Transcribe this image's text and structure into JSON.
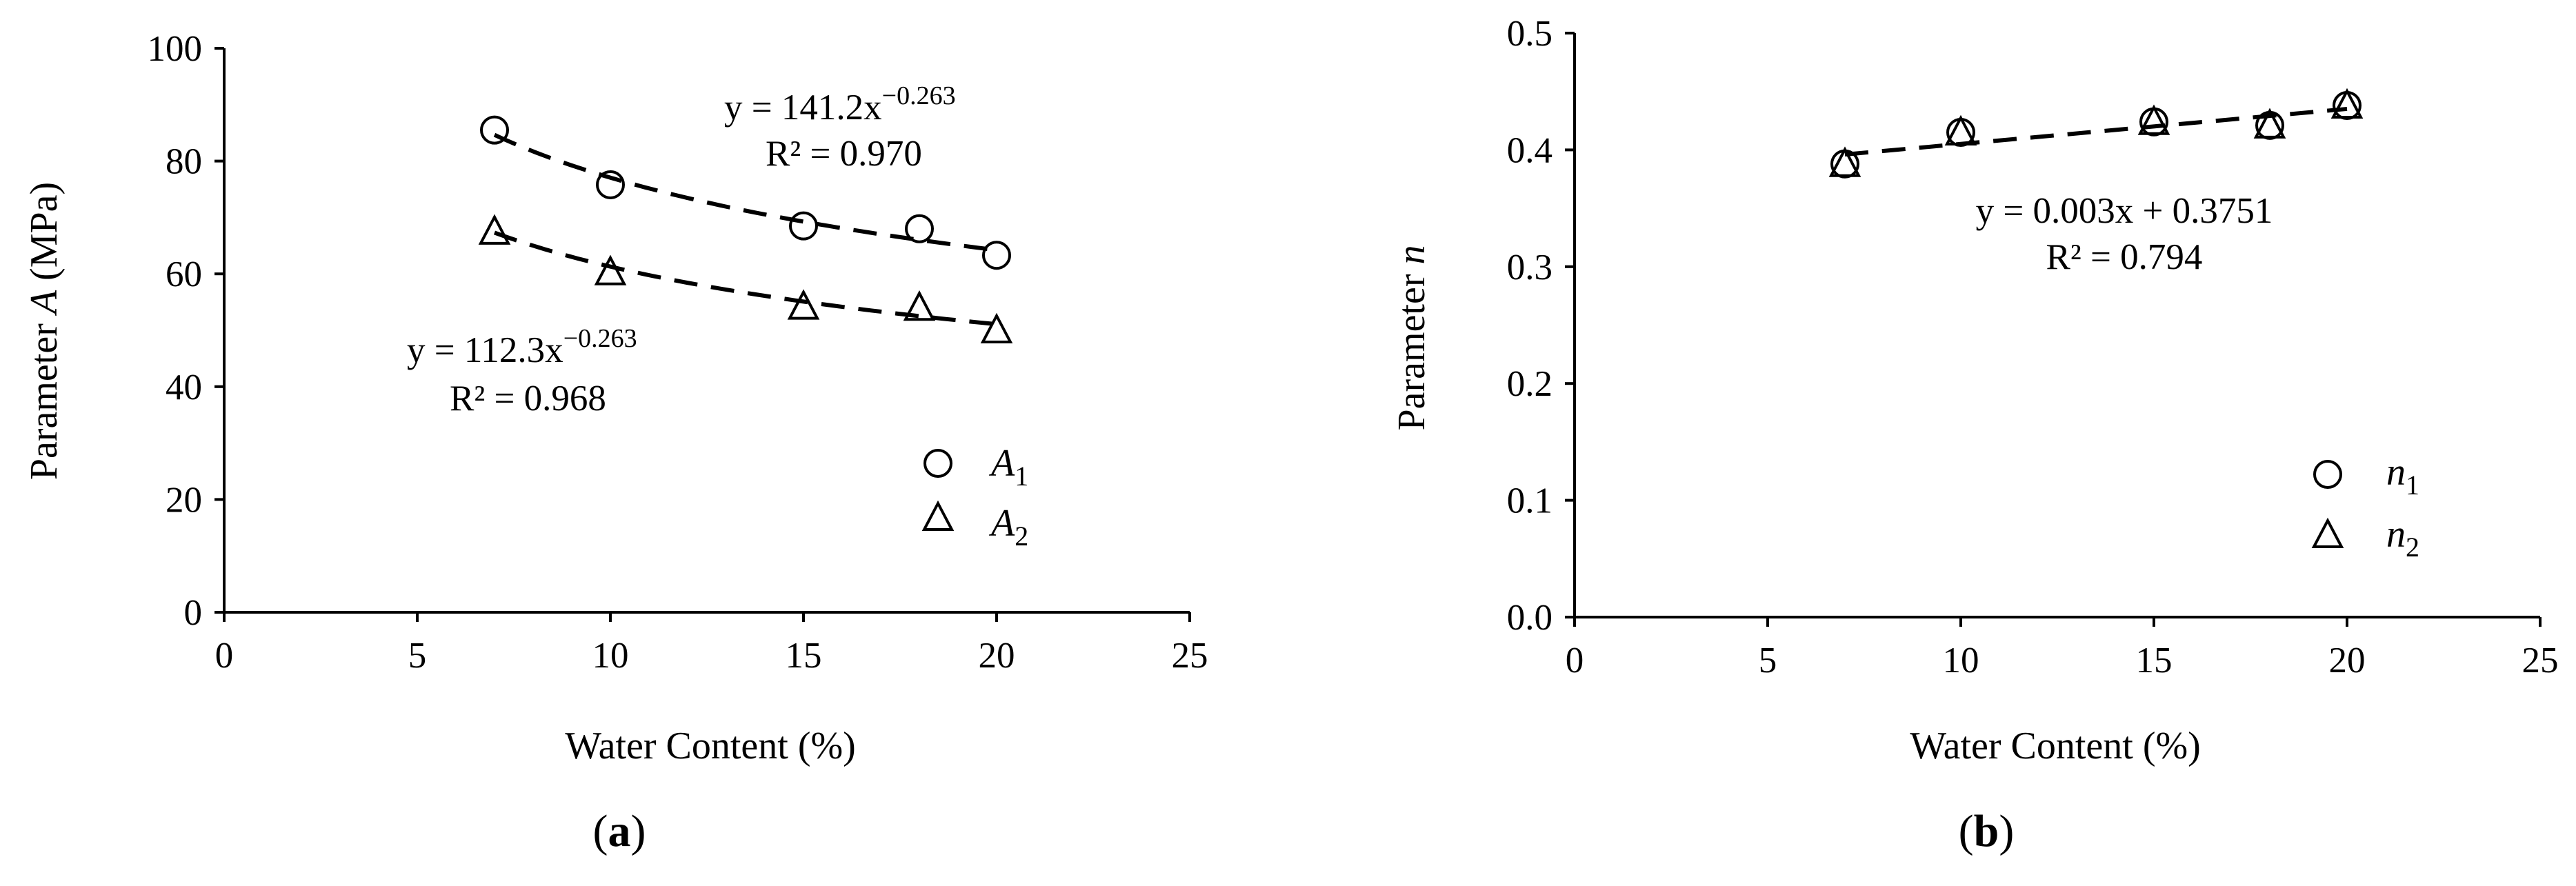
{
  "chart_data": [
    {
      "type": "scatter",
      "panel_label": "a",
      "xlabel": "Water Content (%)",
      "ylabel": {
        "prefix": "Parameter ",
        "symbol": "A",
        "suffix": " (MPa)"
      },
      "xlim": [
        0,
        25
      ],
      "ylim": [
        0,
        100
      ],
      "x_ticks": [
        0,
        5,
        10,
        15,
        20,
        25
      ],
      "y_ticks": [
        0,
        20,
        40,
        60,
        80,
        100
      ],
      "grid": false,
      "legend_position": "bottom-right",
      "series": [
        {
          "name": "A1",
          "symbol": "A",
          "subscript": "1",
          "marker": "circle",
          "x": [
            7,
            10,
            15,
            18,
            20
          ],
          "y": [
            85.5,
            75.8,
            68.5,
            68.0,
            63.3
          ],
          "trend": {
            "type": "power",
            "coef": 141.2,
            "exp": -0.263,
            "equation": "y = 141.2x",
            "exponent_label": "−0.263",
            "r2": "R² = 0.970"
          }
        },
        {
          "name": "A2",
          "symbol": "A",
          "subscript": "2",
          "marker": "triangle",
          "x": [
            7,
            10,
            15,
            18,
            20
          ],
          "y": [
            67.5,
            60.3,
            54.2,
            54.0,
            50.0
          ],
          "trend": {
            "type": "power",
            "coef": 112.3,
            "exp": -0.263,
            "equation": "y = 112.3x",
            "exponent_label": "−0.263",
            "r2": "R² = 0.968"
          }
        }
      ]
    },
    {
      "type": "scatter",
      "panel_label": "b",
      "xlabel": "Water Content (%)",
      "ylabel": {
        "prefix": "Parameter ",
        "symbol": "n",
        "suffix": ""
      },
      "xlim": [
        0,
        25
      ],
      "ylim": [
        0,
        0.5
      ],
      "x_ticks": [
        0,
        5,
        10,
        15,
        20,
        25
      ],
      "y_ticks": [
        0,
        0.1,
        0.2,
        0.3,
        0.4,
        0.5
      ],
      "grid": false,
      "legend_position": "bottom-right",
      "series": [
        {
          "name": "n1",
          "symbol": "n",
          "subscript": "1",
          "marker": "circle",
          "x": [
            7,
            10,
            15,
            18,
            20
          ],
          "y": [
            0.388,
            0.415,
            0.424,
            0.421,
            0.438
          ]
        },
        {
          "name": "n2",
          "symbol": "n",
          "subscript": "2",
          "marker": "triangle",
          "x": [
            7,
            10,
            15,
            18,
            20
          ],
          "y": [
            0.388,
            0.415,
            0.424,
            0.421,
            0.438
          ]
        }
      ],
      "trend": {
        "type": "linear",
        "slope": 0.003,
        "intercept": 0.3751,
        "x_range": [
          7,
          20
        ],
        "equation": "y = 0.003x + 0.3751",
        "r2": "R² = 0.794"
      }
    }
  ]
}
